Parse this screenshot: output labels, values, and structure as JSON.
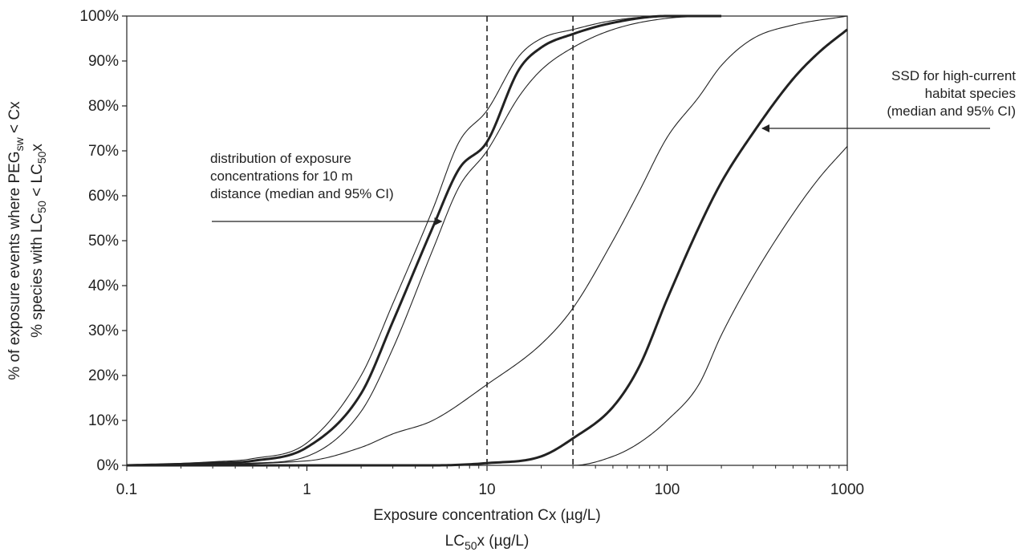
{
  "chart_data": {
    "type": "line",
    "xlabel": "Exposure concentration Cx (µg/L)",
    "xlabel2": "LC50x (µg/L)",
    "ylabel": "% of exposure events where PEGsw < Cx",
    "ylabel2": "% species with LC50 < LC50x",
    "x_scale": "log",
    "xlim": [
      0.1,
      1000
    ],
    "ylim": [
      0,
      100
    ],
    "x_ticks": [
      "0.1",
      "1",
      "10",
      "100",
      "1000"
    ],
    "y_ticks": [
      "0%",
      "10%",
      "20%",
      "30%",
      "40%",
      "50%",
      "60%",
      "70%",
      "80%",
      "90%",
      "100%"
    ],
    "grid": false,
    "vertical_reference_lines": [
      10,
      30
    ],
    "series": [
      {
        "group": "exposure",
        "role": "lower",
        "style": "thin",
        "x": [
          0.1,
          0.3,
          0.5,
          1,
          2,
          3,
          5,
          7,
          10,
          15,
          20,
          30,
          50,
          100,
          200
        ],
        "y": [
          0,
          0.3,
          0.5,
          2,
          12,
          26,
          48,
          62,
          70,
          82,
          88,
          93,
          97,
          99.5,
          100
        ]
      },
      {
        "group": "exposure",
        "role": "median",
        "style": "bold",
        "x": [
          0.1,
          0.3,
          0.5,
          1,
          2,
          3,
          5,
          7,
          10,
          15,
          20,
          30,
          50,
          100,
          200
        ],
        "y": [
          0,
          0.5,
          1,
          4,
          16,
          32,
          53,
          66,
          72,
          88,
          93,
          96,
          98.5,
          100,
          100
        ]
      },
      {
        "group": "exposure",
        "role": "upper",
        "style": "thin",
        "x": [
          0.1,
          0.3,
          0.5,
          1,
          2,
          3,
          5,
          7,
          10,
          15,
          20,
          30,
          50,
          100,
          200
        ],
        "y": [
          0,
          0.8,
          1.5,
          5,
          20,
          36,
          57,
          72,
          79,
          91,
          95,
          97,
          99,
          100,
          100
        ]
      },
      {
        "group": "ssd",
        "role": "upper",
        "style": "thin",
        "x": [
          0.1,
          1,
          2,
          3,
          5,
          10,
          20,
          30,
          50,
          70,
          100,
          150,
          200,
          300,
          500,
          1000
        ],
        "y": [
          0,
          1,
          4,
          7,
          10,
          18,
          27,
          35,
          50,
          61,
          73,
          82,
          89,
          95,
          98,
          100
        ]
      },
      {
        "group": "ssd",
        "role": "median",
        "style": "bold",
        "x": [
          0.1,
          5,
          10,
          20,
          30,
          50,
          70,
          100,
          150,
          200,
          300,
          500,
          700,
          1000
        ],
        "y": [
          0,
          0,
          0.5,
          2,
          6,
          13,
          22,
          37,
          53,
          63,
          74,
          86,
          92,
          97
        ]
      },
      {
        "group": "ssd",
        "role": "lower",
        "style": "thin",
        "x": [
          0.1,
          30,
          50,
          70,
          100,
          150,
          200,
          300,
          500,
          700,
          1000
        ],
        "y": [
          0,
          0,
          2,
          5,
          10,
          18,
          29,
          42,
          56,
          64,
          71
        ]
      }
    ],
    "annotations": [
      {
        "name": "exposure-annotation",
        "lines": [
          "distribution of exposure",
          "concentrations for 10 m",
          "distance (median and 95% CI)"
        ],
        "points_to": [
          5.6,
          53
        ]
      },
      {
        "name": "ssd-annotation",
        "lines": [
          "SSD for high-current",
          "habitat species",
          "(median and 95% CI)"
        ],
        "points_to": [
          350,
          75
        ]
      }
    ]
  }
}
